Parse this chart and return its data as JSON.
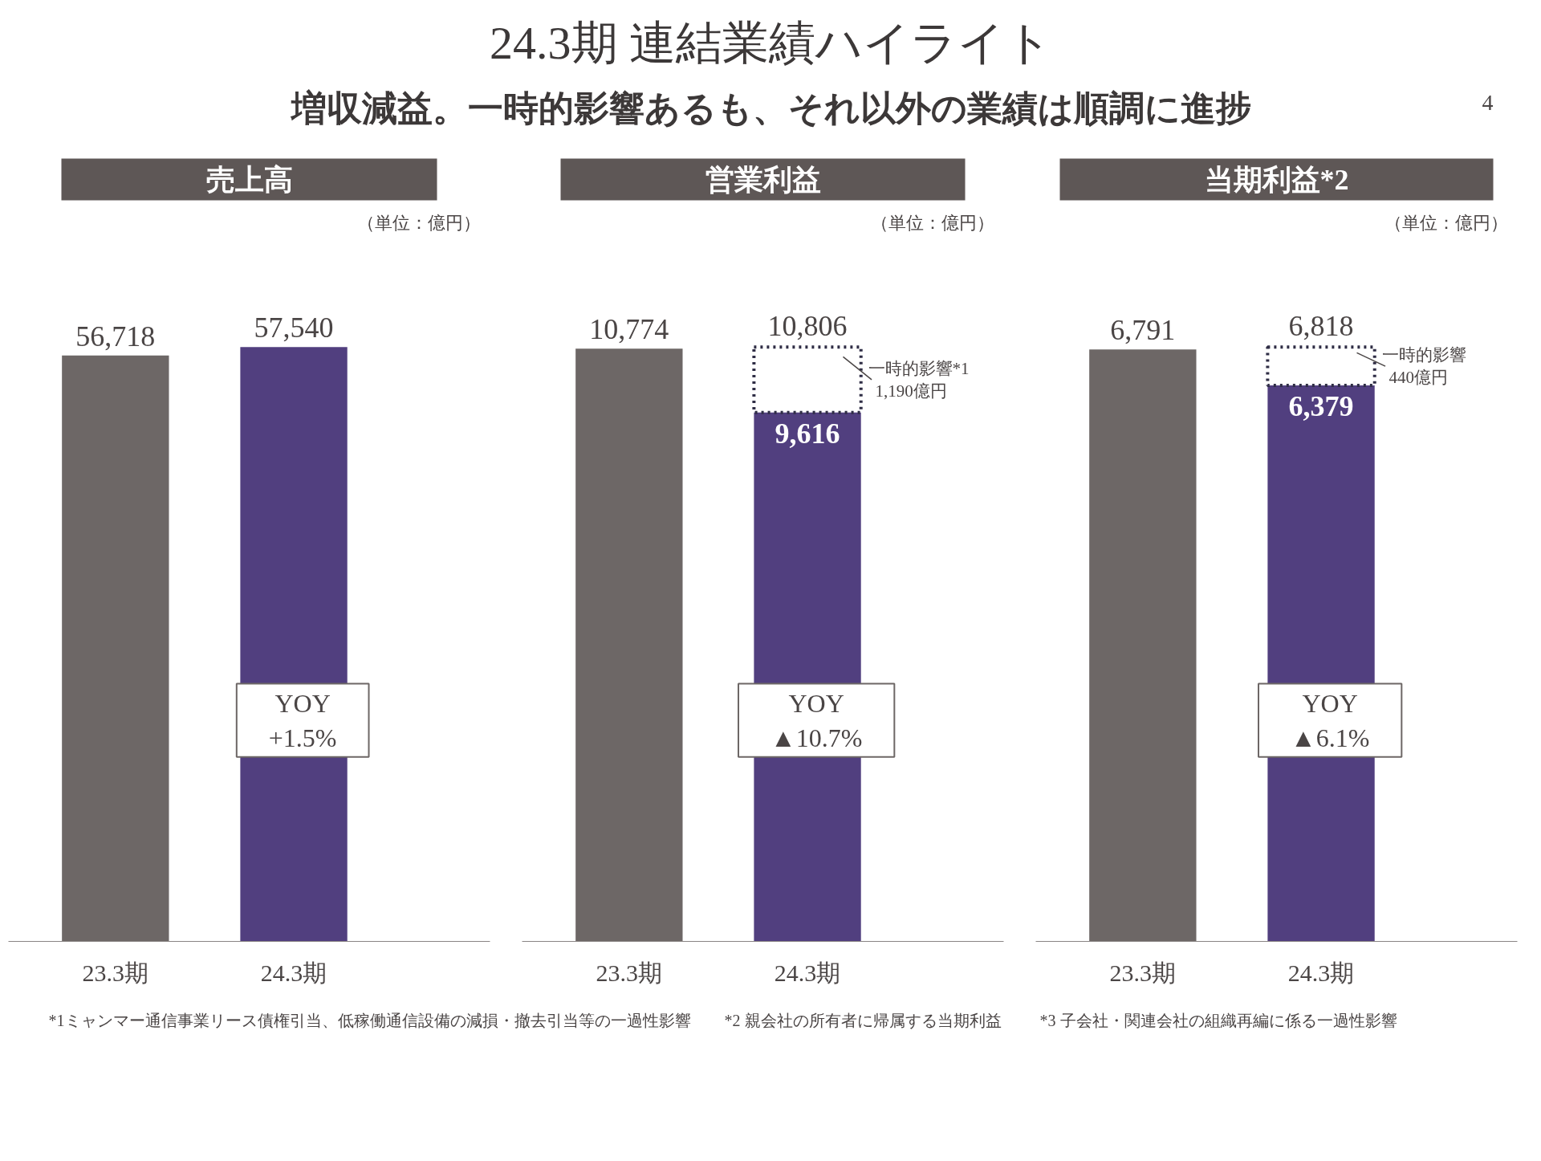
{
  "chart_data": [
    {
      "type": "other",
      "title": "24.3期 連結業績ハイライト",
      "subtitle": "増収減益。一時的影響あるも、それ以外の業績は順調に進捗",
      "annotations": [
        "4"
      ]
    },
    {
      "type": "bar",
      "title": "売上高",
      "categories": [
        "23.3期",
        "24.3期"
      ],
      "colors": [
        "#6d6766",
        "#513f7f"
      ],
      "values": [
        56718,
        57540
      ],
      "value_labels": [
        "56,718",
        "57,540"
      ],
      "annotations": [
        "（単位：億円）",
        "YOY\n+1.5%"
      ],
      "tick_labels": "x"
    },
    {
      "type": "bar",
      "title": "営業利益",
      "categories": [
        "23.3期",
        "24.3期"
      ],
      "stacked": true,
      "series": [
        {
          "colors": [
            "#6d6766",
            "#513f7f"
          ],
          "values": [
            10774,
            9616
          ],
          "value_labels": [
            "10,774",
            "9,616"
          ]
        },
        {
          "name": "一時的影響*1",
          "color": "#2f2d45",
          "line_style": "dotted",
          "values": [
            null,
            1190
          ],
          "value_labels": [
            null,
            "1,190億円"
          ]
        }
      ],
      "totals": [
        null,
        "10,806"
      ],
      "annotations": [
        "（単位：億円）",
        "YOY\n▲10.7%"
      ],
      "tick_labels": "x"
    },
    {
      "type": "bar",
      "title": "当期利益*2",
      "categories": [
        "23.3期",
        "24.3期"
      ],
      "stacked": true,
      "series": [
        {
          "colors": [
            "#6d6766",
            "#513f7f"
          ],
          "values": [
            6791,
            6379
          ],
          "value_labels": [
            "6,791",
            "6,379"
          ]
        },
        {
          "name": "一時的影響",
          "color": "#2f2d45",
          "line_style": "dotted",
          "values": [
            null,
            440
          ],
          "value_labels": [
            null,
            "440億円"
          ]
        }
      ],
      "totals": [
        null,
        "6,818"
      ],
      "annotations": [
        "（単位：億円）",
        "YOY\n▲6.1%"
      ],
      "tick_labels": "x"
    },
    {
      "type": "other",
      "annotations": [
        "*1ミャンマー通信事業リース債権引当、低稼働通信設備の減損・撤去引当等の一過性影響",
        "*2 親会社の所有者に帰属する当期利益",
        "*3 子会社・関連会社の組織再編に係る一過性影響"
      ]
    }
  ]
}
